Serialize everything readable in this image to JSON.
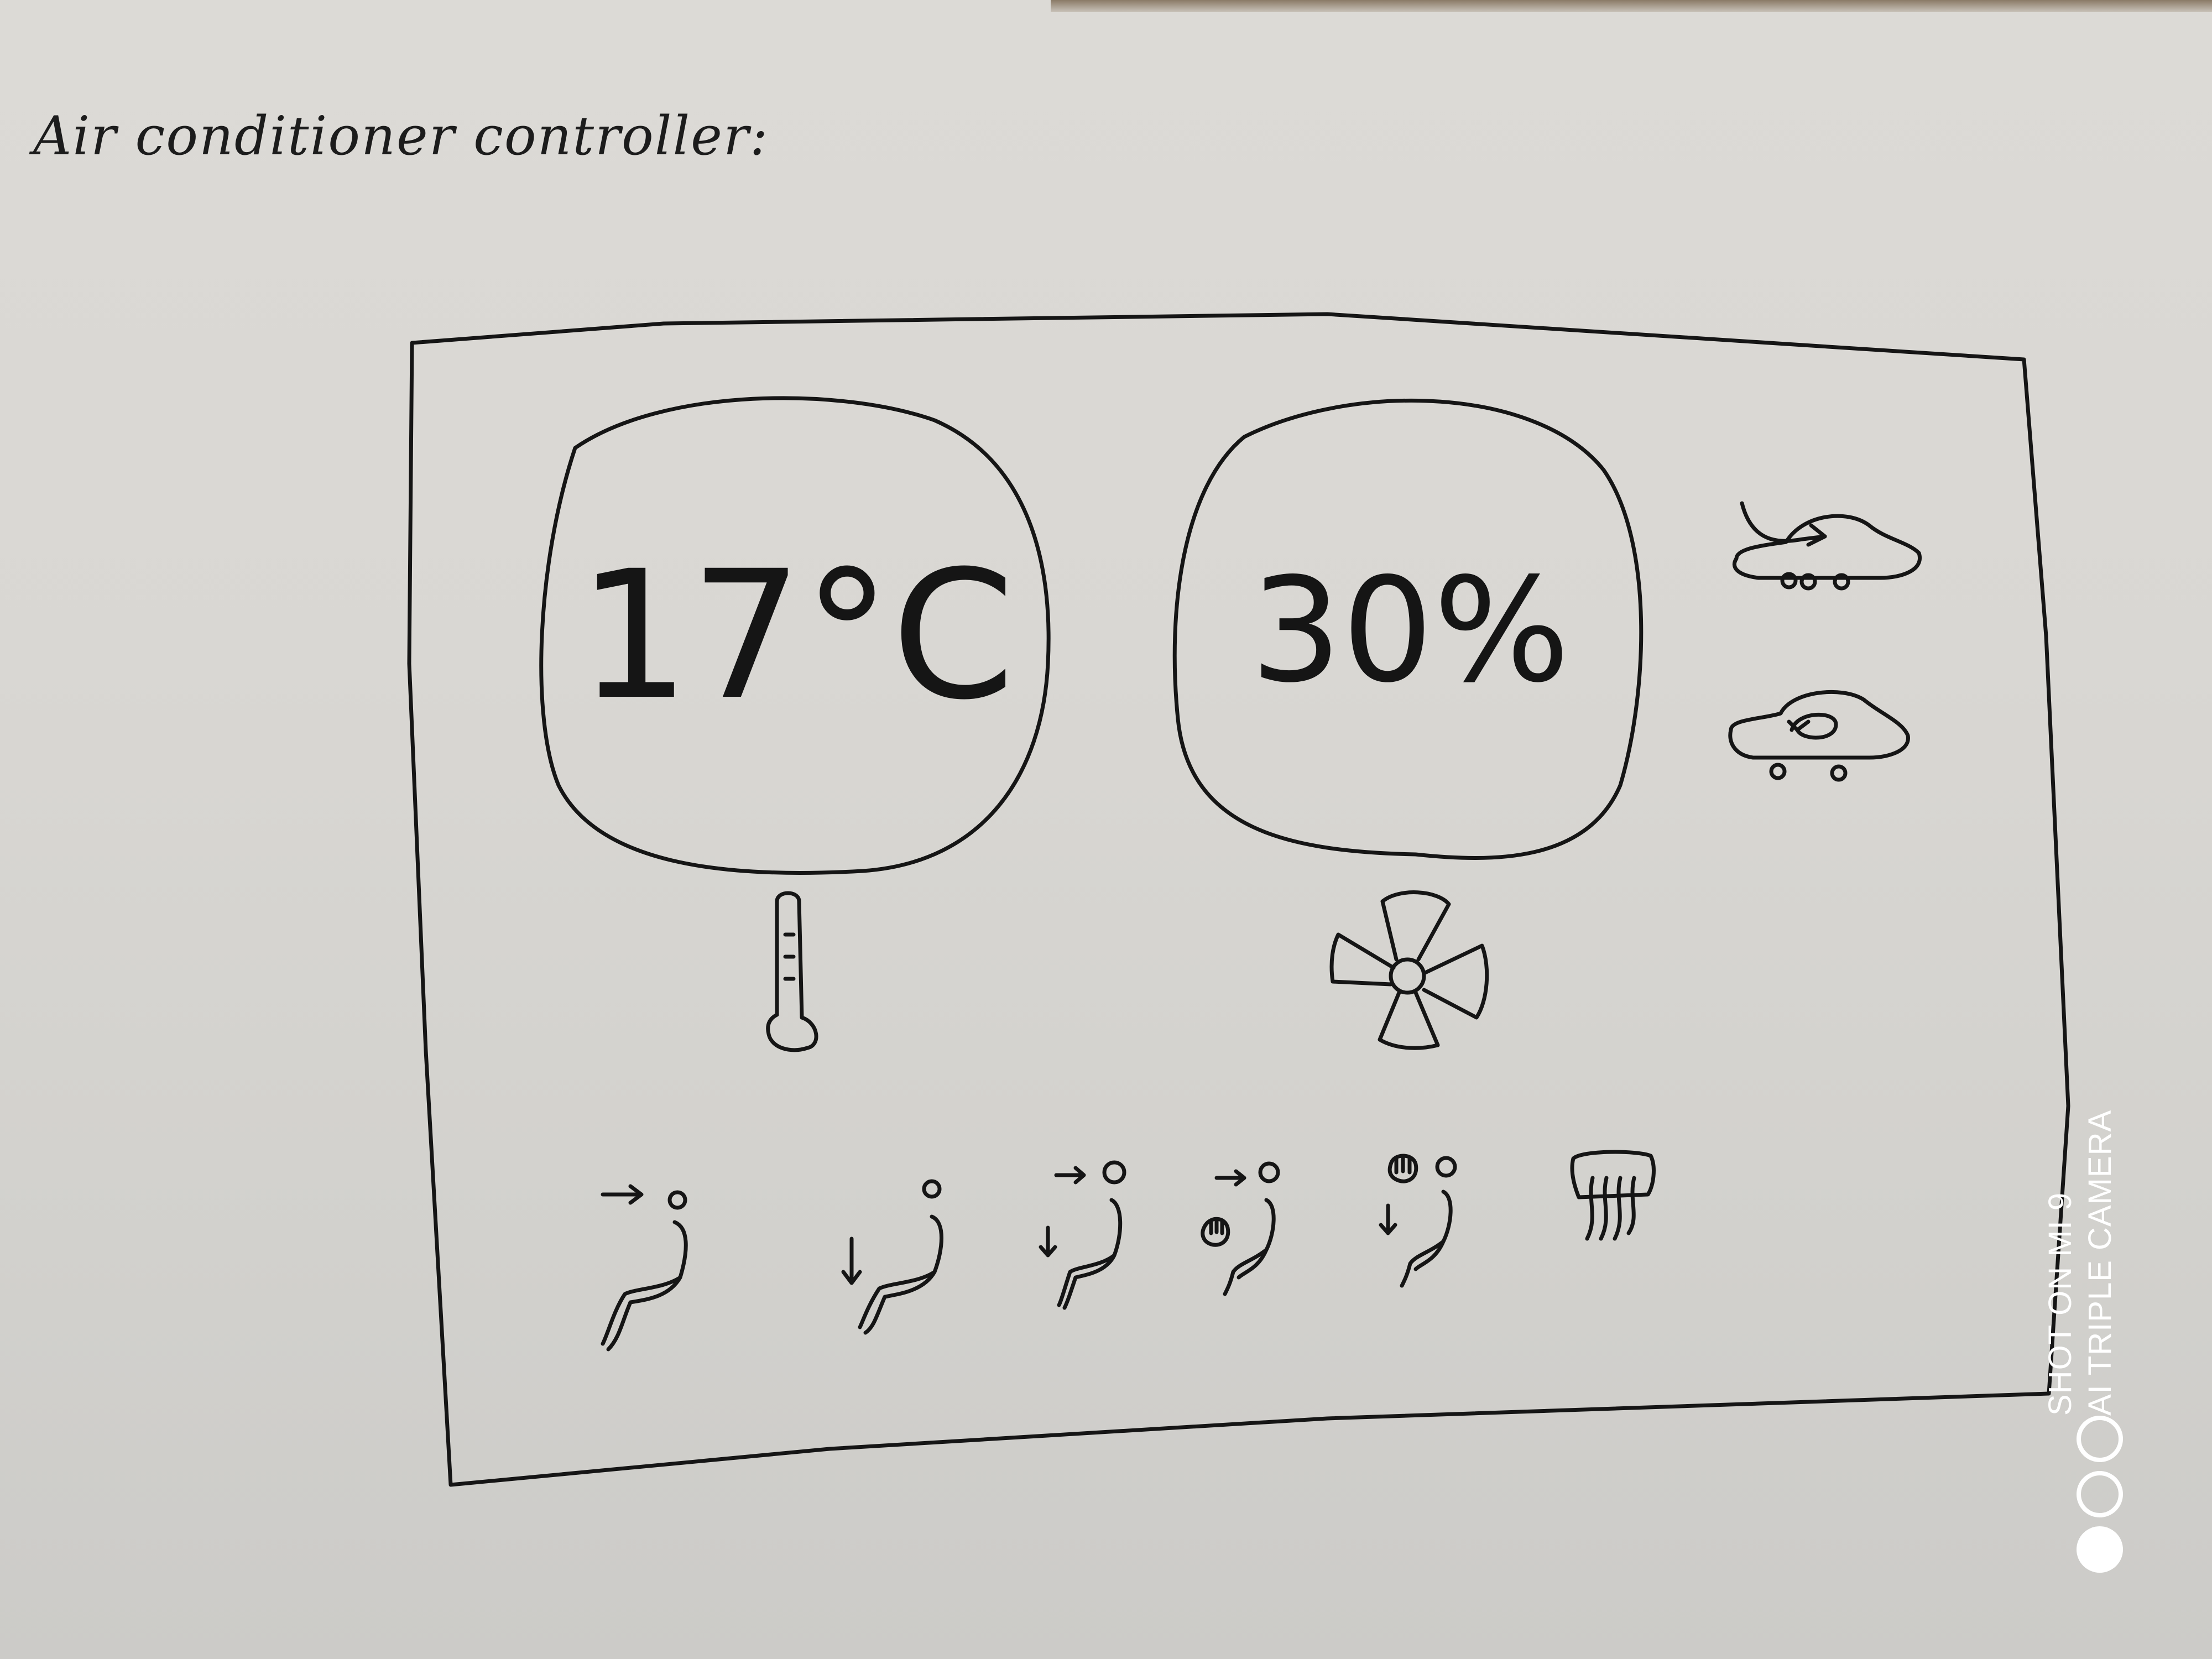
{
  "page": {
    "title": "Air conditioner controller:"
  },
  "panel": {
    "temperature": {
      "value": "17°C",
      "icon": "thermometer-icon"
    },
    "fan": {
      "value": "30%",
      "icon": "fan-icon"
    },
    "air_modes": [
      {
        "name": "fresh-air",
        "icon": "car-fresh-air-icon"
      },
      {
        "name": "recirculation",
        "icon": "car-recirculate-icon"
      }
    ],
    "airflow_modes": [
      {
        "name": "face",
        "icon": "airflow-face-icon"
      },
      {
        "name": "feet",
        "icon": "airflow-feet-icon"
      },
      {
        "name": "face-and-feet",
        "icon": "airflow-face-feet-icon"
      },
      {
        "name": "face-and-windshield",
        "icon": "airflow-face-windshield-icon"
      },
      {
        "name": "windshield-and-feet",
        "icon": "airflow-windshield-feet-icon"
      },
      {
        "name": "rear-defrost",
        "icon": "rear-defrost-icon"
      }
    ]
  },
  "watermark": {
    "line1": "SHOT ON MI 9",
    "line2": "AI TRIPLE CAMERA"
  },
  "colors": {
    "ink": "#151515",
    "paper": "#dcdad6"
  }
}
